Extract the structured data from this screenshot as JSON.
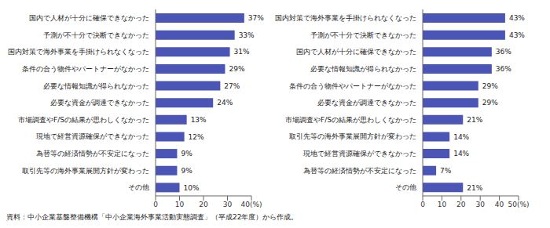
{
  "chart_data": [
    {
      "type": "bar",
      "orientation": "horizontal",
      "categories": [
        "国内で人材が十分に確保できなかった",
        "予測が不十分で決断できなかった",
        "国内対策で海外事業を手掛けられなくなった",
        "条件の合う物件やパートナーがなかった",
        "必要な情報知識が得られなかった",
        "必要な資金が調達できなかった",
        "市場調査やF/Sの結果が思わしくなかった",
        "現地で経営資源確保ができなかった",
        "為替等の経済情勢が不安定になった",
        "取引先等の海外事業展開方針が変わった",
        "その他"
      ],
      "values": [
        37,
        33,
        31,
        29,
        27,
        24,
        13,
        12,
        9,
        9,
        10
      ],
      "value_labels": [
        "37%",
        "33%",
        "31%",
        "29%",
        "27%",
        "24%",
        "13%",
        "12%",
        "9%",
        "9%",
        "10%"
      ],
      "color": "#4b55b5",
      "xlim": [
        0,
        40
      ],
      "xticks": [
        0,
        10,
        20,
        30,
        {
          "value": 40,
          "label": "40(%)"
        }
      ],
      "grid": false,
      "data_labels": true
    },
    {
      "type": "bar",
      "orientation": "horizontal",
      "categories": [
        "国内対策で海外事業を手掛けられなくなった",
        "予測が不十分で決断できなかった",
        "国内で人材が十分に確保できなかった",
        "必要な情報知識が得られなかった",
        "条件の合う物件やパートナーがなかった",
        "必要な資金が調達できなかった",
        "市場調査やF/Sの結果が思わしくなかった",
        "取引先等の海外事業展開方針が変わった",
        "現地で経営資源確保ができなかった",
        "為替等の経済情勢が不安定になった",
        "その他"
      ],
      "values": [
        43,
        43,
        36,
        36,
        29,
        29,
        21,
        14,
        14,
        7,
        21
      ],
      "value_labels": [
        "43%",
        "43%",
        "36%",
        "36%",
        "29%",
        "29%",
        "21%",
        "14%",
        "14%",
        "7%",
        "21%"
      ],
      "color": "#4b55b5",
      "xlim": [
        0,
        50
      ],
      "xticks": [
        0,
        10,
        20,
        30,
        40,
        {
          "value": 50,
          "label": "50(%)"
        }
      ],
      "grid": false,
      "data_labels": true
    }
  ],
  "note": "資料：中小企業基盤整備機構「中小企業海外事業活動実態調査」（平成22年度）から作成。"
}
